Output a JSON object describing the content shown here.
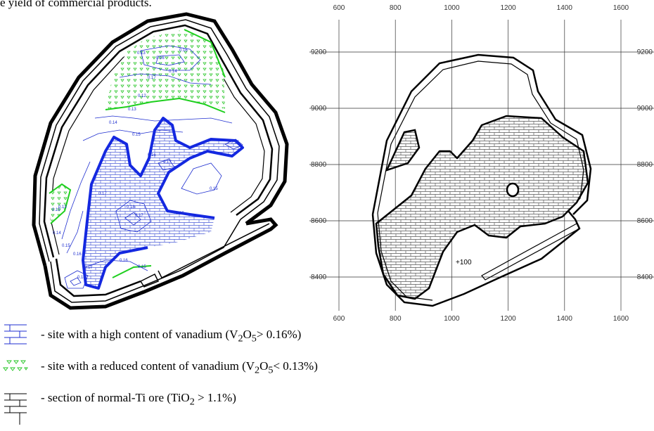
{
  "header_fragment": "e yield of commercial products.",
  "left_map": {
    "contour_labels": [
      "0.13",
      "0.16",
      "0.16",
      "0.14",
      "0.17",
      "0.12",
      "0.13",
      "0.14",
      "0.15",
      "0.16",
      "0.17",
      "0.17",
      "0.15",
      "0.17",
      "0.18",
      "0.17",
      "0.16",
      "0.15",
      "0.14",
      "0.13",
      "0.15",
      "0.16",
      "0.17",
      "0.18",
      "0.16",
      "0.15"
    ],
    "colors": {
      "contour": "#1f2fd0",
      "high_v_boundary": "#1428e0",
      "low_v_boundary": "#1ecf1e",
      "low_v_marker": "#22c422",
      "pit_outline": "#000000"
    }
  },
  "right_map": {
    "x_ticks": [
      600,
      800,
      1000,
      1200,
      1400,
      1600
    ],
    "y_ticks": [
      9200,
      9000,
      8800,
      8600,
      8400
    ],
    "elevation_label": "+100"
  },
  "legend": [
    {
      "icon": "brick-hatch-blue-icon",
      "text": "- site with a high content of vanadium (V",
      "sub1": "2",
      "mid": "O",
      "sub2": "5",
      "rest": "> 0.16%)"
    },
    {
      "icon": "triangle-hatch-green-icon",
      "text": "- site with a reduced content of vanadium (V",
      "sub1": "2",
      "mid": "O",
      "sub2": "5",
      "rest": "< 0.13%)"
    },
    {
      "icon": "brick-hatch-black-icon",
      "text": "- section of normal-Ti ore (TiO",
      "sub1": "2",
      "mid": "",
      "sub2": "",
      "rest": " > 1.1%)"
    }
  ]
}
